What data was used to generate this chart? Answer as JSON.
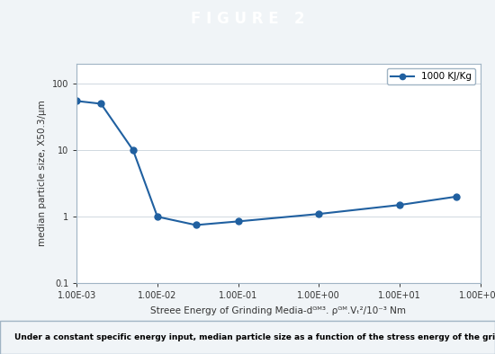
{
  "title": "F I G U R E   2",
  "title_bg_color": "#2e7fa0",
  "title_text_color": "#ffffff",
  "x_data": [
    0.001,
    0.002,
    0.005,
    0.01,
    0.03,
    0.1,
    1.0,
    10.0,
    50.0
  ],
  "y_data": [
    55,
    50,
    10,
    1.0,
    0.75,
    0.85,
    1.1,
    1.5,
    2.0
  ],
  "line_color": "#2060a0",
  "marker": "o",
  "marker_size": 5,
  "legend_label": "1000 KJ/Kg",
  "xlabel": "Streee Energy of Grinding Media-dᴳᴹ³. ρᴳᴹ.Vₜ²/10⁻³ Nm",
  "ylabel": "median particle size, X50.3/µm",
  "xlim": [
    0.001,
    100.0
  ],
  "ylim": [
    0.1,
    200
  ],
  "caption": "Under a constant specific energy input, median particle size as a function of the stress energy of the grinding media.",
  "bg_color": "#f0f4f7",
  "plot_bg_color": "#ffffff",
  "grid_color": "#d0d8e0",
  "border_color": "#a0b4c4"
}
